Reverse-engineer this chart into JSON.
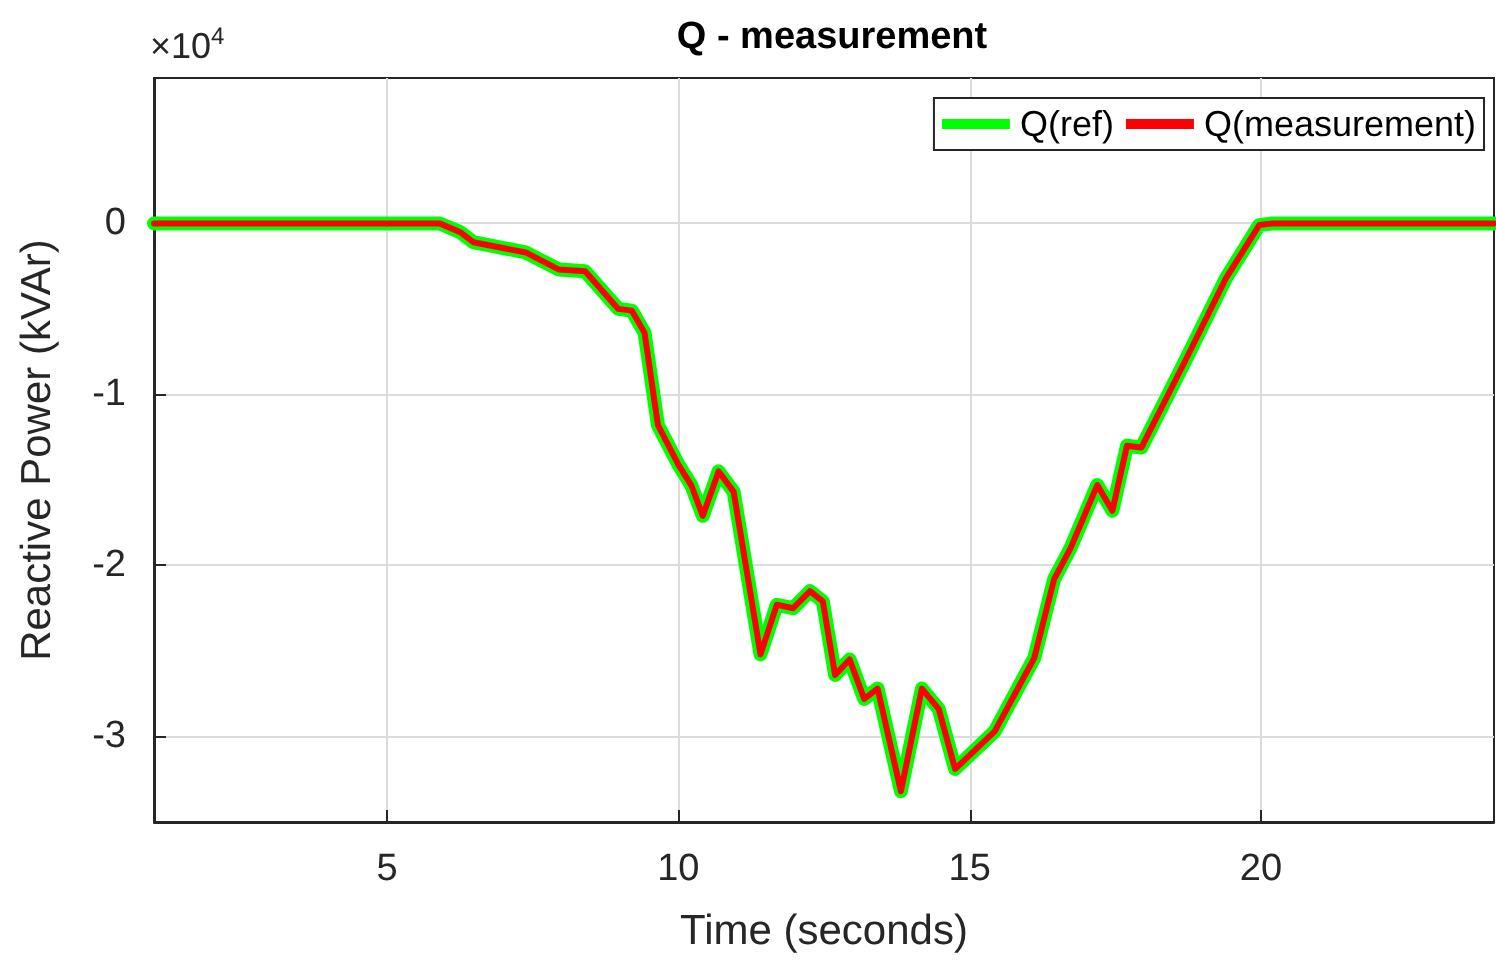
{
  "chart_data": {
    "type": "line",
    "title": "Q - measurement",
    "xlabel": "Time (seconds)",
    "ylabel": "Reactive Power (kVAr)",
    "annotations": [
      "×10$^{4}$"
    ],
    "x": [
      1,
      5.9,
      6.25,
      6.48,
      7.38,
      7.95,
      8.4,
      8.97,
      9.2,
      9.42,
      9.65,
      10.0,
      10.22,
      10.42,
      10.69,
      10.95,
      11.41,
      11.69,
      11.97,
      12.26,
      12.48,
      12.69,
      12.94,
      13.19,
      13.42,
      13.82,
      14.18,
      14.47,
      14.75,
      15.43,
      16.11,
      16.45,
      16.73,
      17.19,
      17.45,
      17.7,
      17.95,
      18.72,
      19.4,
      19.97,
      20.2,
      24
    ],
    "series": [
      {
        "name": "Q(ref)",
        "color": "#00ff00",
        "values": [
          0,
          0,
          -0.05,
          -0.11,
          -0.17,
          -0.27,
          -0.28,
          -0.5,
          -0.51,
          -0.64,
          -1.18,
          -1.41,
          -1.53,
          -1.71,
          -1.45,
          -1.57,
          -2.52,
          -2.23,
          -2.25,
          -2.15,
          -2.21,
          -2.64,
          -2.55,
          -2.78,
          -2.72,
          -3.32,
          -2.72,
          -2.84,
          -3.19,
          -2.97,
          -2.54,
          -2.08,
          -1.9,
          -1.53,
          -1.68,
          -1.3,
          -1.31,
          -0.79,
          -0.32,
          -0.01,
          0,
          0
        ]
      },
      {
        "name": "Q(measurement)",
        "color": "#ff0000",
        "values": [
          0,
          0,
          -0.05,
          -0.11,
          -0.17,
          -0.27,
          -0.28,
          -0.5,
          -0.51,
          -0.64,
          -1.18,
          -1.41,
          -1.53,
          -1.71,
          -1.45,
          -1.57,
          -2.52,
          -2.23,
          -2.25,
          -2.15,
          -2.21,
          -2.64,
          -2.55,
          -2.78,
          -2.72,
          -3.32,
          -2.72,
          -2.84,
          -3.19,
          -2.97,
          -2.54,
          -2.08,
          -1.9,
          -1.53,
          -1.68,
          -1.3,
          -1.31,
          -0.79,
          -0.32,
          -0.01,
          0,
          0
        ]
      }
    ],
    "xlim": [
      1,
      24
    ],
    "xticks": [
      5,
      10,
      15,
      20
    ],
    "ylim": [
      -3.5,
      0.85
    ],
    "yticks": [
      -3,
      -2,
      -1,
      0
    ],
    "grid": true,
    "legend": "top right",
    "marker": "none",
    "line_style": "solid"
  }
}
